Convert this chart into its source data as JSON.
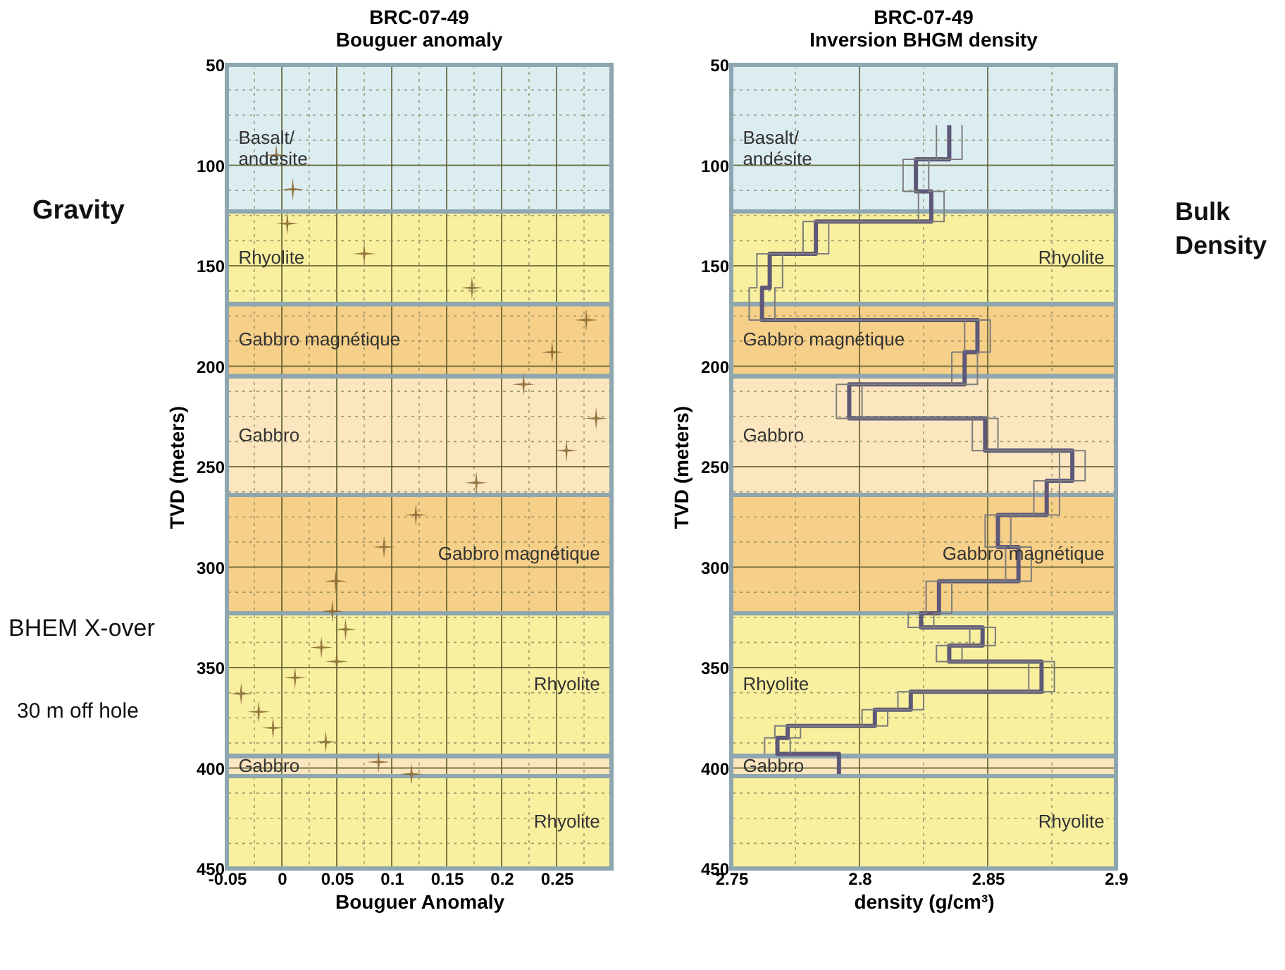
{
  "chart_data": [
    {
      "type": "scatter",
      "title": "BRC-07-49\nBouguer anomaly",
      "xlabel": "Bouguer Anomaly",
      "ylabel": "TVD (meters)",
      "marker": "cross",
      "grid": true,
      "xlim": [
        -0.05,
        0.3
      ],
      "xticks": [
        -0.05,
        {
          "value": -0.025,
          "label": null
        },
        0,
        {
          "value": 0.025,
          "label": null
        },
        0.05,
        {
          "value": 0.075,
          "label": null
        },
        0.1,
        {
          "value": 0.125,
          "label": null
        },
        0.15,
        {
          "value": 0.175,
          "label": null
        },
        0.2,
        {
          "value": 0.225,
          "label": null
        },
        0.25,
        {
          "value": 0.275,
          "label": null
        }
      ],
      "ylim": [
        450,
        50
      ],
      "yticks": [
        50,
        {
          "value": 62.5,
          "label": null
        },
        {
          "value": 75,
          "label": null
        },
        {
          "value": 87.5,
          "label": null
        },
        100,
        {
          "value": 112.5,
          "label": null
        },
        {
          "value": 125,
          "label": null
        },
        {
          "value": 137.5,
          "label": null
        },
        150,
        {
          "value": 162.5,
          "label": null
        },
        {
          "value": 175,
          "label": null
        },
        {
          "value": 187.5,
          "label": null
        },
        200,
        {
          "value": 212.5,
          "label": null
        },
        {
          "value": 225,
          "label": null
        },
        {
          "value": 237.5,
          "label": null
        },
        250,
        {
          "value": 262.5,
          "label": null
        },
        {
          "value": 275,
          "label": null
        },
        {
          "value": 287.5,
          "label": null
        },
        300,
        {
          "value": 312.5,
          "label": null
        },
        {
          "value": 325,
          "label": null
        },
        {
          "value": 337.5,
          "label": null
        },
        350,
        {
          "value": 362.5,
          "label": null
        },
        {
          "value": 375,
          "label": null
        },
        {
          "value": 387.5,
          "label": null
        },
        400,
        {
          "value": 412.5,
          "label": null
        },
        {
          "value": 425,
          "label": null
        },
        {
          "value": 437.5,
          "label": null
        },
        450
      ],
      "series": [
        {
          "color": "#8b6b35",
          "x": [
            -0.005,
            0.01,
            0.005,
            0.075,
            0.173,
            0.277,
            0.246,
            0.22,
            0.286,
            0.259,
            0.177,
            0.122,
            0.093,
            0.049,
            0.046,
            0.058,
            0.036,
            0.05,
            0.012,
            -0.037,
            -0.021,
            -0.008,
            0.04,
            0.088,
            0.118
          ],
          "values": [
            95,
            112,
            129,
            144,
            161,
            177,
            193,
            209,
            226,
            242,
            258,
            274,
            290,
            307,
            322,
            331,
            340,
            347,
            355,
            363,
            372,
            380,
            387,
            397,
            403
          ]
        }
      ],
      "bands": [
        {
          "axis": "y",
          "from": 50,
          "to": 123,
          "label": "Basalt/\nandesite",
          "color": "#dcedf2"
        },
        {
          "axis": "y",
          "from": 123,
          "to": 169,
          "label": "Rhyolite",
          "color": "#f8ef9f"
        },
        {
          "axis": "y",
          "from": 169,
          "to": 205,
          "label": "Gabbro magnétique",
          "color": "#f6cf88"
        },
        {
          "axis": "y",
          "from": 205,
          "to": 264,
          "label": "Gabbro",
          "color": "#fbe6c0"
        },
        {
          "axis": "y",
          "from": 264,
          "to": 323,
          "label": "Gabbro magnétique",
          "color": "#f6cf88"
        },
        {
          "axis": "y",
          "from": 323,
          "to": 394,
          "label": "Rhyolite",
          "color": "#f8ef9f"
        },
        {
          "axis": "y",
          "from": 394,
          "to": 404,
          "label": "Gabbro",
          "color": "#fbe6c0"
        },
        {
          "axis": "y",
          "from": 404,
          "to": 450,
          "label": "Rhyolite",
          "color": "#f8ef9f"
        }
      ],
      "annotations": [
        "Gravity",
        "BHEM X-over",
        "30 m off hole"
      ]
    },
    {
      "type": "line",
      "title": "BRC-07-49\nInversion BHGM density",
      "xlabel": "density (g/cm³)",
      "ylabel": "TVD (meters)",
      "marker": "none",
      "grid": true,
      "line_style": "solid",
      "xlim": [
        2.75,
        2.9
      ],
      "xticks": [
        2.75,
        {
          "value": 2.775,
          "label": null
        },
        2.8,
        {
          "value": 2.825,
          "label": null
        },
        2.85,
        {
          "value": 2.875,
          "label": null
        },
        2.9
      ],
      "ylim": [
        450,
        50
      ],
      "yticks": [
        50,
        {
          "value": 62.5,
          "label": null
        },
        {
          "value": 75,
          "label": null
        },
        {
          "value": 87.5,
          "label": null
        },
        100,
        {
          "value": 112.5,
          "label": null
        },
        {
          "value": 125,
          "label": null
        },
        {
          "value": 137.5,
          "label": null
        },
        150,
        {
          "value": 162.5,
          "label": null
        },
        {
          "value": 175,
          "label": null
        },
        {
          "value": 187.5,
          "label": null
        },
        200,
        {
          "value": 212.5,
          "label": null
        },
        {
          "value": 225,
          "label": null
        },
        {
          "value": 237.5,
          "label": null
        },
        250,
        {
          "value": 262.5,
          "label": null
        },
        {
          "value": 275,
          "label": null
        },
        {
          "value": 287.5,
          "label": null
        },
        300,
        {
          "value": 312.5,
          "label": null
        },
        {
          "value": 325,
          "label": null
        },
        {
          "value": 337.5,
          "label": null
        },
        350,
        {
          "value": 362.5,
          "label": null
        },
        {
          "value": 375,
          "label": null
        },
        {
          "value": 387.5,
          "label": null
        },
        400,
        {
          "value": 412.5,
          "label": null
        },
        {
          "value": 425,
          "label": null
        },
        {
          "value": 437.5,
          "label": null
        },
        450
      ],
      "series": [
        {
          "color": "#5e5878",
          "x": [
            2.835,
            2.835,
            2.822,
            2.822,
            2.828,
            2.828,
            2.783,
            2.783,
            2.765,
            2.765,
            2.762,
            2.762,
            2.846,
            2.846,
            2.841,
            2.841,
            2.796,
            2.796,
            2.849,
            2.849,
            2.883,
            2.883,
            2.873,
            2.873,
            2.854,
            2.854,
            2.862,
            2.862,
            2.831,
            2.831,
            2.824,
            2.824,
            2.848,
            2.848,
            2.835,
            2.835,
            2.871,
            2.871,
            2.82,
            2.82,
            2.806,
            2.806,
            2.772,
            2.772,
            2.768,
            2.768,
            2.792,
            2.792
          ],
          "values": [
            80,
            97,
            97,
            113,
            113,
            128,
            128,
            144,
            144,
            161,
            161,
            177,
            177,
            193,
            193,
            209,
            209,
            226,
            226,
            242,
            242,
            257,
            257,
            274,
            274,
            290,
            290,
            307,
            307,
            323,
            323,
            330,
            330,
            339,
            339,
            347,
            347,
            362,
            362,
            371,
            371,
            379,
            379,
            385,
            385,
            393,
            393,
            403
          ]
        },
        {
          "color": "#7d7d7d",
          "x": [
            2.83,
            2.83,
            2.817,
            2.817,
            2.823,
            2.823,
            2.778,
            2.778,
            2.76,
            2.76,
            2.757,
            2.757,
            2.841,
            2.841,
            2.836,
            2.836,
            2.791,
            2.791,
            2.844,
            2.844,
            2.878,
            2.878,
            2.868,
            2.868,
            2.849,
            2.849,
            2.857,
            2.857,
            2.826,
            2.826,
            2.819,
            2.819,
            2.843,
            2.843,
            2.83,
            2.83,
            2.866,
            2.866,
            2.815,
            2.815,
            2.801,
            2.801,
            2.767,
            2.767,
            2.763,
            2.763
          ],
          "values": [
            80,
            97,
            97,
            113,
            113,
            128,
            128,
            144,
            144,
            161,
            161,
            177,
            177,
            193,
            193,
            209,
            209,
            226,
            226,
            242,
            242,
            257,
            257,
            274,
            274,
            290,
            290,
            307,
            307,
            323,
            323,
            330,
            330,
            339,
            339,
            347,
            347,
            362,
            362,
            371,
            371,
            379,
            379,
            385,
            385,
            393
          ]
        },
        {
          "color": "#7d7d7d",
          "x": [
            2.84,
            2.84,
            2.827,
            2.827,
            2.833,
            2.833,
            2.788,
            2.788,
            2.77,
            2.77,
            2.767,
            2.767,
            2.851,
            2.851,
            2.846,
            2.846,
            2.801,
            2.801,
            2.854,
            2.854,
            2.888,
            2.888,
            2.878,
            2.878,
            2.859,
            2.859,
            2.867,
            2.867,
            2.836,
            2.836,
            2.829,
            2.829,
            2.853,
            2.853,
            2.84,
            2.84,
            2.876,
            2.876,
            2.825,
            2.825,
            2.811,
            2.811,
            2.777,
            2.777,
            2.773,
            2.773
          ],
          "values": [
            80,
            97,
            97,
            113,
            113,
            128,
            128,
            144,
            144,
            161,
            161,
            177,
            177,
            193,
            193,
            209,
            209,
            226,
            226,
            242,
            242,
            257,
            257,
            274,
            274,
            290,
            290,
            307,
            307,
            323,
            323,
            330,
            330,
            339,
            339,
            347,
            347,
            362,
            362,
            371,
            371,
            379,
            379,
            385,
            385,
            393
          ]
        }
      ],
      "bands": [
        {
          "axis": "y",
          "from": 50,
          "to": 123,
          "label": "Basalt/\nandésite",
          "color": "#dcedf2"
        },
        {
          "axis": "y",
          "from": 123,
          "to": 169,
          "label": "Rhyolite",
          "color": "#f8ef9f"
        },
        {
          "axis": "y",
          "from": 169,
          "to": 205,
          "label": "Gabbro magnétique",
          "color": "#f6cf88"
        },
        {
          "axis": "y",
          "from": 205,
          "to": 264,
          "label": "Gabbro",
          "color": "#fbe6c0"
        },
        {
          "axis": "y",
          "from": 264,
          "to": 323,
          "label": "Gabbro magnétique",
          "color": "#f6cf88"
        },
        {
          "axis": "y",
          "from": 323,
          "to": 394,
          "label": "Rhyolite",
          "color": "#f8ef9f"
        },
        {
          "axis": "y",
          "from": 394,
          "to": 404,
          "label": "Gabbro",
          "color": "#fbe6c0"
        },
        {
          "axis": "y",
          "from": 404,
          "to": 450,
          "label": "Rhyolite",
          "color": "#f8ef9f"
        }
      ],
      "annotations": [
        "Bulk\nDensity"
      ]
    }
  ]
}
